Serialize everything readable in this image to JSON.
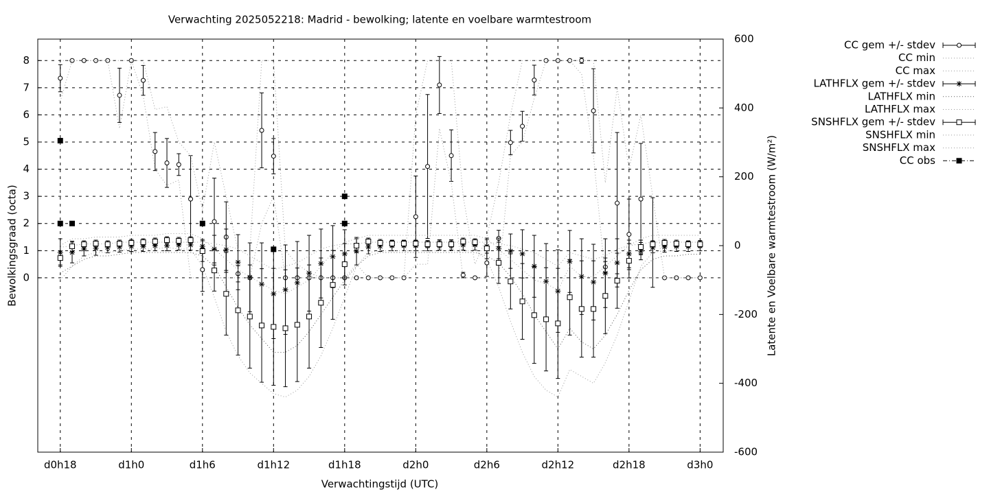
{
  "chart_data": {
    "type": "errorbar",
    "title": "Verwachting 2025052218: Madrid - bewolking; latente en voelbare warmtestroom",
    "x_label": "Verwachtingstijd (UTC)",
    "y_label": "Bewolkingsgraad (octa)",
    "y2_label": "Latente en Voelbare warmtestroom (W/m²)",
    "x": [
      0,
      1,
      2,
      3,
      4,
      5,
      6,
      7,
      8,
      9,
      10,
      11,
      12,
      13,
      14,
      15,
      16,
      17,
      18,
      19,
      20,
      21,
      22,
      23,
      24,
      25,
      26,
      27,
      28,
      29,
      30,
      31,
      32,
      33,
      34,
      35,
      36,
      37,
      38,
      39,
      40,
      41,
      42,
      43,
      44,
      45,
      46,
      47,
      48,
      49,
      50,
      51,
      52,
      53,
      54
    ],
    "xlim": [
      -1.9,
      55.95
    ],
    "xticks": [
      {
        "value": 0,
        "label": "d0h18"
      },
      {
        "value": 6,
        "label": "d1h0"
      },
      {
        "value": 12,
        "label": "d1h6"
      },
      {
        "value": 18,
        "label": "d1h12"
      },
      {
        "value": 24,
        "label": "d1h18"
      },
      {
        "value": 30,
        "label": "d2h0"
      },
      {
        "value": 36,
        "label": "d2h6"
      },
      {
        "value": 42,
        "label": "d2h12"
      },
      {
        "value": 48,
        "label": "d2h18"
      },
      {
        "value": 54,
        "label": "d3h0"
      }
    ],
    "ylim": [
      -6.42,
      8.79
    ],
    "yticks": [
      0,
      1,
      2,
      3,
      4,
      5,
      6,
      7,
      8
    ],
    "y2lim": [
      -600,
      600
    ],
    "y2ticks": [
      -600,
      -400,
      -200,
      0,
      200,
      400,
      600
    ],
    "grid": true,
    "legend": "outside-top-right",
    "series": [
      {
        "name": "CC gem +/- stdev",
        "color": "#000000",
        "style": "errorbars",
        "marker": "circle",
        "values": [
          7.35,
          8,
          8,
          8,
          8,
          6.72,
          8,
          7.27,
          4.65,
          4.23,
          4.17,
          2.9,
          0.3,
          2.07,
          1.5,
          0.15,
          0,
          5.43,
          4.48,
          0,
          0,
          0,
          0,
          0,
          0,
          0,
          0,
          0,
          0,
          0,
          2.25,
          4.1,
          7.1,
          4.5,
          0.1,
          0,
          0.55,
          1.45,
          4.98,
          5.58,
          7.28,
          8,
          8,
          8,
          8,
          6.15,
          0.4,
          2.75,
          1.6,
          2.9,
          1.3,
          0,
          0,
          0,
          0
        ],
        "stdev": [
          0.5,
          0,
          0,
          0,
          0,
          1.0,
          0,
          0.55,
          0.7,
          0.9,
          0.4,
          1.6,
          0.8,
          1.6,
          1.3,
          0.3,
          0,
          1.38,
          0.65,
          0,
          0,
          0,
          0,
          0,
          0,
          0,
          0,
          0,
          0,
          0,
          1.5,
          2.65,
          1.05,
          0.95,
          0.1,
          0,
          0.5,
          0.3,
          0.45,
          0.55,
          0.55,
          0,
          0,
          0,
          0.1,
          1.55,
          0.2,
          2.6,
          1.3,
          2.05,
          1.65,
          0,
          0,
          0,
          0
        ]
      },
      {
        "name": "CC min",
        "color": "#999999",
        "style": "dotted",
        "values": [
          6.5,
          8,
          8,
          8,
          8,
          5.5,
          8,
          6.7,
          4,
          3.4,
          3.6,
          0,
          0,
          0,
          0,
          0,
          0,
          2,
          3,
          0,
          0,
          0,
          0,
          0,
          0,
          0,
          0,
          0,
          0,
          0,
          0.5,
          0.5,
          5.5,
          3.5,
          0,
          0,
          0,
          0,
          4.5,
          5,
          6.6,
          8,
          8,
          8,
          7.5,
          4.5,
          0,
          0,
          0,
          0,
          0,
          0,
          0,
          0,
          0
        ]
      },
      {
        "name": "CC max",
        "color": "#999999",
        "style": "dotted",
        "values": [
          8,
          8,
          8,
          8,
          8,
          8,
          8,
          8,
          6.2,
          6.3,
          5,
          4.5,
          2.5,
          5,
          3,
          1,
          1,
          8,
          8,
          1,
          0.5,
          0.2,
          0,
          0,
          0,
          0.5,
          0,
          0,
          0,
          0,
          6,
          8,
          8,
          8,
          3,
          0.5,
          1.5,
          3.5,
          6,
          8,
          8,
          8,
          8,
          8,
          8,
          8,
          3.5,
          7,
          4,
          6,
          3,
          0,
          0,
          0,
          0
        ]
      },
      {
        "name": "LATHFLX gem +/- stdev",
        "color": "#000000",
        "style": "errorbars",
        "marker": "star",
        "axis": "y2",
        "values": [
          -20,
          -20,
          -10,
          -8,
          -6,
          -4,
          -2,
          -2,
          0,
          0,
          2,
          2,
          -2,
          -10,
          -12,
          -48,
          -92,
          -112,
          -140,
          -128,
          -108,
          -80,
          -52,
          -32,
          -24,
          -16,
          -4,
          -2,
          0,
          0,
          0,
          0,
          2,
          2,
          2,
          2,
          -2,
          -8,
          -16,
          -24,
          -60,
          -104,
          -132,
          -46,
          -90,
          -106,
          -80,
          -50,
          -24,
          -16,
          -6,
          -4,
          -2,
          -2,
          0
        ],
        "stdev": [
          40,
          30,
          20,
          20,
          15,
          15,
          15,
          15,
          15,
          15,
          15,
          15,
          20,
          40,
          60,
          80,
          100,
          120,
          130,
          130,
          120,
          110,
          100,
          90,
          70,
          40,
          20,
          15,
          15,
          15,
          15,
          15,
          15,
          15,
          15,
          15,
          20,
          30,
          50,
          70,
          90,
          110,
          120,
          90,
          110,
          110,
          100,
          70,
          40,
          25,
          15,
          15,
          15,
          15,
          15
        ]
      },
      {
        "name": "LATHFLX min",
        "color": "#555555",
        "style": "dotted",
        "axis": "y2",
        "values": [
          -80,
          -60,
          -40,
          -30,
          -30,
          -25,
          -20,
          -20,
          -20,
          -20,
          -20,
          -20,
          -30,
          -60,
          -120,
          -180,
          -230,
          -270,
          -310,
          -310,
          -290,
          -250,
          -200,
          -150,
          -100,
          -60,
          -30,
          -20,
          -20,
          -20,
          -20,
          -20,
          -20,
          -20,
          -20,
          -20,
          -30,
          -50,
          -90,
          -140,
          -200,
          -250,
          -300,
          -240,
          -280,
          -300,
          -260,
          -200,
          -130,
          -70,
          -40,
          -30,
          -30,
          -25,
          -25
        ]
      },
      {
        "name": "LATHFLX max",
        "color": "#999999",
        "style": "dotted",
        "axis": "y2",
        "values": [
          -5,
          0,
          5,
          5,
          5,
          10,
          10,
          10,
          10,
          10,
          10,
          10,
          10,
          5,
          0,
          -10,
          -30,
          -50,
          -70,
          -60,
          -50,
          -30,
          -10,
          0,
          5,
          5,
          10,
          10,
          10,
          10,
          10,
          10,
          10,
          10,
          10,
          10,
          10,
          5,
          0,
          -10,
          -20,
          -40,
          -60,
          -20,
          -30,
          -40,
          -30,
          -10,
          0,
          5,
          10,
          10,
          10,
          10,
          10
        ]
      },
      {
        "name": "SNSHFLX gem +/- stdev",
        "color": "#000000",
        "style": "errorbars",
        "marker": "square",
        "axis": "y2",
        "values": [
          -36,
          -2,
          4,
          6,
          4,
          6,
          8,
          10,
          12,
          16,
          14,
          16,
          -16,
          -72,
          -140,
          -188,
          -206,
          -232,
          -236,
          -240,
          -230,
          -206,
          -166,
          -114,
          -54,
          0,
          12,
          8,
          6,
          6,
          6,
          4,
          4,
          4,
          12,
          10,
          -8,
          -50,
          -104,
          -162,
          -202,
          -214,
          -226,
          -150,
          -184,
          -184,
          -146,
          -102,
          -44,
          -4,
          4,
          8,
          6,
          4,
          4
        ],
        "stdev": [
          20,
          15,
          10,
          10,
          10,
          10,
          10,
          10,
          10,
          10,
          10,
          10,
          30,
          60,
          120,
          130,
          150,
          165,
          170,
          170,
          165,
          150,
          130,
          100,
          60,
          20,
          10,
          10,
          10,
          10,
          10,
          10,
          10,
          10,
          10,
          10,
          30,
          60,
          80,
          110,
          140,
          150,
          160,
          110,
          140,
          140,
          110,
          80,
          50,
          20,
          10,
          10,
          10,
          10,
          10
        ]
      },
      {
        "name": "SNSHFLX min",
        "color": "#999999",
        "style": "dotted",
        "axis": "y2",
        "values": [
          -100,
          -60,
          -30,
          -20,
          -20,
          -15,
          -10,
          -10,
          -10,
          -5,
          -10,
          -10,
          -60,
          -150,
          -250,
          -320,
          -370,
          -400,
          -430,
          -440,
          -420,
          -380,
          -320,
          -240,
          -150,
          -60,
          -20,
          -15,
          -15,
          -15,
          -15,
          -15,
          -15,
          -15,
          -15,
          -15,
          -40,
          -120,
          -220,
          -310,
          -380,
          -420,
          -440,
          -360,
          -380,
          -400,
          -340,
          -260,
          -160,
          -60,
          -20,
          -15,
          -15,
          -15,
          -15
        ]
      },
      {
        "name": "SNSHFLX max",
        "color": "#999999",
        "style": "dotted",
        "axis": "y2",
        "values": [
          0,
          20,
          20,
          25,
          25,
          25,
          30,
          30,
          30,
          35,
          35,
          35,
          20,
          -10,
          -40,
          -70,
          -90,
          -110,
          -130,
          -140,
          -120,
          -100,
          -60,
          -20,
          10,
          20,
          30,
          30,
          30,
          30,
          30,
          30,
          30,
          30,
          30,
          30,
          20,
          -10,
          -40,
          -70,
          -100,
          -110,
          -130,
          -60,
          -90,
          -90,
          -60,
          -30,
          0,
          20,
          30,
          30,
          30,
          30,
          30
        ]
      },
      {
        "name": "CC obs",
        "color": "#000000",
        "style": "points",
        "marker": "filled-square",
        "x": [
          0,
          0,
          1,
          12,
          18,
          24,
          24
        ],
        "values": [
          5.05,
          2,
          2,
          2,
          1.05,
          3,
          2
        ]
      }
    ]
  }
}
